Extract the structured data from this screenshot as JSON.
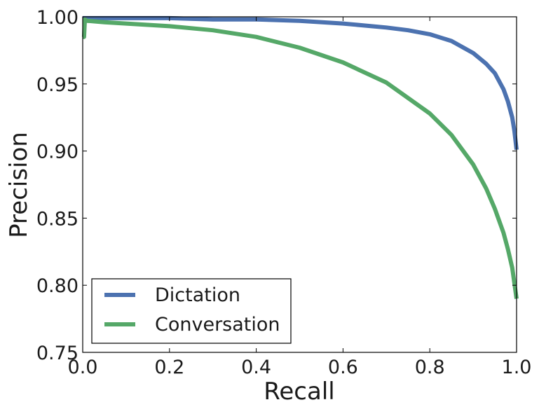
{
  "chart_data": {
    "type": "line",
    "title": "",
    "xlabel": "Recall",
    "ylabel": "Precision",
    "xlim": [
      0.0,
      1.0
    ],
    "ylim": [
      0.75,
      1.0
    ],
    "xticks": [
      "0.0",
      "0.2",
      "0.4",
      "0.6",
      "0.8",
      "1.0"
    ],
    "yticks": [
      "0.75",
      "0.80",
      "0.85",
      "0.90",
      "0.95",
      "1.00"
    ],
    "grid": false,
    "legend_position": "lower-left",
    "series": [
      {
        "name": "Dictation",
        "color": "#4C72B0",
        "x": [
          0.0,
          0.1,
          0.2,
          0.3,
          0.4,
          0.5,
          0.6,
          0.7,
          0.75,
          0.8,
          0.85,
          0.9,
          0.93,
          0.95,
          0.97,
          0.98,
          0.99,
          0.995,
          1.0
        ],
        "y": [
          0.999,
          0.999,
          0.999,
          0.998,
          0.998,
          0.997,
          0.995,
          0.992,
          0.99,
          0.987,
          0.982,
          0.973,
          0.965,
          0.958,
          0.946,
          0.937,
          0.925,
          0.915,
          0.901
        ]
      },
      {
        "name": "Conversation",
        "color": "#55A868",
        "x": [
          0.0,
          0.003,
          0.005,
          0.01,
          0.05,
          0.1,
          0.2,
          0.3,
          0.4,
          0.5,
          0.6,
          0.7,
          0.8,
          0.85,
          0.9,
          0.93,
          0.95,
          0.97,
          0.98,
          0.99,
          1.0
        ],
        "y": [
          0.985,
          0.985,
          0.998,
          0.997,
          0.996,
          0.995,
          0.993,
          0.99,
          0.985,
          0.977,
          0.966,
          0.951,
          0.928,
          0.912,
          0.89,
          0.872,
          0.857,
          0.839,
          0.827,
          0.813,
          0.79
        ]
      }
    ]
  }
}
